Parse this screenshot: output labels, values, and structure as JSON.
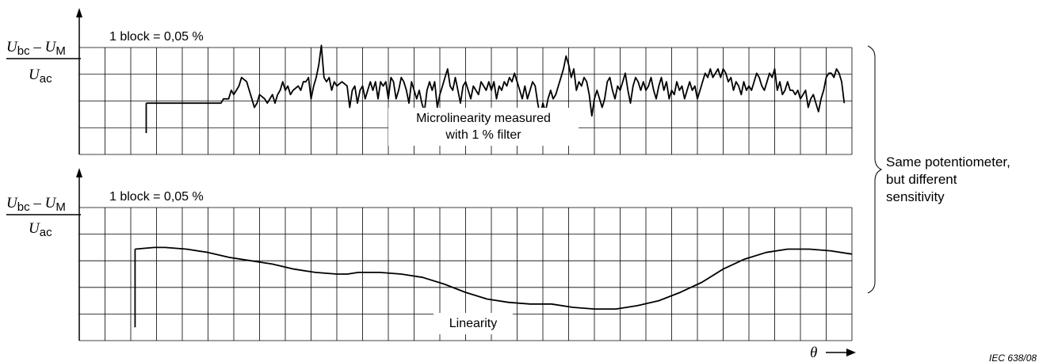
{
  "chart_data": [
    {
      "type": "line",
      "ylabel": {
        "num_a": "U",
        "num_a_sub": "bc",
        "minus": " – ",
        "num_b": "U",
        "num_b_sub": "M",
        "den": "U",
        "den_sub": "ac"
      },
      "scale_note": "1 block = 0,05 %",
      "annotation": [
        "Microlinearity measured",
        "with 1 % filter"
      ],
      "grid": true,
      "ylim": [
        -0.15,
        0.1
      ],
      "start_step": {
        "x": 2.6,
        "y_from": -0.1,
        "y_to": -0.03
      },
      "series": [
        {
          "points": [
            [
              2.6,
              -0.03
            ],
            [
              5.5,
              -0.03
            ],
            [
              5.6,
              -0.02
            ],
            [
              5.8,
              -0.02
            ],
            [
              5.9,
              0.0
            ],
            [
              6.0,
              -0.01
            ],
            [
              6.2,
              0.01
            ],
            [
              6.3,
              0.03
            ],
            [
              6.5,
              0.02
            ],
            [
              6.6,
              0.0
            ],
            [
              6.7,
              -0.02
            ],
            [
              6.8,
              -0.04
            ],
            [
              6.9,
              -0.03
            ],
            [
              7.0,
              -0.01
            ],
            [
              7.2,
              -0.02
            ],
            [
              7.3,
              -0.03
            ],
            [
              7.5,
              -0.01
            ],
            [
              7.6,
              -0.03
            ],
            [
              7.7,
              -0.01
            ],
            [
              7.8,
              0.0
            ],
            [
              7.9,
              0.02
            ],
            [
              8.0,
              0.0
            ],
            [
              8.1,
              0.01
            ],
            [
              8.2,
              -0.01
            ],
            [
              8.3,
              0.0
            ],
            [
              8.5,
              0.01
            ],
            [
              8.6,
              0.0
            ],
            [
              8.7,
              0.02
            ],
            [
              8.8,
              0.02
            ],
            [
              8.9,
              0.03
            ],
            [
              9.0,
              -0.02
            ],
            [
              9.1,
              0.01
            ],
            [
              9.2,
              0.03
            ],
            [
              9.3,
              0.06
            ],
            [
              9.4,
              0.105
            ],
            [
              9.5,
              0.03
            ],
            [
              9.6,
              0.02
            ],
            [
              9.7,
              0.03
            ],
            [
              9.8,
              0.0
            ],
            [
              9.9,
              0.02
            ],
            [
              10.0,
              0.01
            ],
            [
              10.2,
              0.02
            ],
            [
              10.4,
              0.01
            ],
            [
              10.5,
              -0.04
            ],
            [
              10.6,
              0.0
            ],
            [
              10.7,
              0.01
            ],
            [
              10.8,
              -0.03
            ],
            [
              10.9,
              0.0
            ],
            [
              11.0,
              0.01
            ],
            [
              11.1,
              -0.02
            ],
            [
              11.2,
              0.0
            ],
            [
              11.3,
              0.02
            ],
            [
              11.4,
              0.0
            ],
            [
              11.5,
              0.02
            ],
            [
              11.6,
              -0.02
            ],
            [
              11.7,
              0.02
            ],
            [
              11.8,
              0.01
            ],
            [
              11.9,
              0.02
            ],
            [
              12.0,
              -0.02
            ],
            [
              12.1,
              0.03
            ],
            [
              12.2,
              0.02
            ],
            [
              12.3,
              -0.02
            ],
            [
              12.4,
              0.0
            ],
            [
              12.5,
              0.03
            ],
            [
              12.6,
              0.02
            ],
            [
              12.7,
              0.0
            ],
            [
              12.8,
              -0.03
            ],
            [
              12.9,
              0.02
            ],
            [
              13.0,
              0.0
            ],
            [
              13.1,
              -0.02
            ],
            [
              13.2,
              0.0
            ],
            [
              13.3,
              -0.03
            ],
            [
              13.4,
              -0.05
            ],
            [
              13.5,
              0.0
            ],
            [
              13.6,
              0.02
            ],
            [
              13.7,
              0.0
            ],
            [
              13.8,
              0.02
            ],
            [
              13.9,
              -0.04
            ],
            [
              14.0,
              -0.01
            ],
            [
              14.1,
              0.01
            ],
            [
              14.2,
              0.03
            ],
            [
              14.3,
              0.05
            ],
            [
              14.4,
              0.01
            ],
            [
              14.5,
              0.0
            ],
            [
              14.6,
              0.03
            ],
            [
              14.7,
              0.0
            ],
            [
              14.8,
              -0.03
            ],
            [
              14.9,
              0.01
            ],
            [
              15.0,
              0.02
            ],
            [
              15.1,
              0.0
            ],
            [
              15.2,
              -0.02
            ],
            [
              15.3,
              0.01
            ],
            [
              15.4,
              0.0
            ],
            [
              15.5,
              -0.01
            ],
            [
              15.6,
              0.02
            ],
            [
              15.7,
              0.01
            ],
            [
              15.8,
              0.0
            ],
            [
              15.9,
              0.02
            ],
            [
              16.0,
              0.0
            ],
            [
              16.1,
              0.02
            ],
            [
              16.2,
              -0.02
            ],
            [
              16.3,
              0.01
            ],
            [
              16.4,
              0.0
            ],
            [
              16.5,
              0.02
            ],
            [
              16.6,
              0.01
            ],
            [
              16.7,
              0.03
            ],
            [
              16.8,
              0.02
            ],
            [
              16.9,
              0.04
            ],
            [
              17.0,
              0.02
            ],
            [
              17.1,
              0.0
            ],
            [
              17.2,
              -0.02
            ],
            [
              17.3,
              0.01
            ],
            [
              17.4,
              -0.02
            ],
            [
              17.5,
              0.0
            ],
            [
              17.6,
              0.02
            ],
            [
              17.7,
              0.01
            ],
            [
              17.8,
              -0.03
            ],
            [
              17.9,
              -0.06
            ],
            [
              18.0,
              -0.03
            ],
            [
              18.1,
              -0.05
            ],
            [
              18.2,
              -0.02
            ],
            [
              18.3,
              0.0
            ],
            [
              18.4,
              -0.02
            ],
            [
              18.5,
              -0.01
            ],
            [
              18.6,
              0.01
            ],
            [
              18.7,
              0.03
            ],
            [
              18.8,
              0.05
            ],
            [
              18.9,
              0.08
            ],
            [
              19.0,
              0.06
            ],
            [
              19.1,
              0.03
            ],
            [
              19.2,
              0.05
            ],
            [
              19.3,
              0.0
            ],
            [
              19.4,
              0.02
            ],
            [
              19.5,
              0.01
            ],
            [
              19.6,
              0.03
            ],
            [
              19.7,
              0.02
            ],
            [
              19.8,
              -0.01
            ],
            [
              19.9,
              -0.06
            ],
            [
              20.0,
              -0.02
            ],
            [
              20.1,
              0.0
            ],
            [
              20.2,
              -0.02
            ],
            [
              20.3,
              -0.04
            ],
            [
              20.4,
              -0.02
            ],
            [
              20.5,
              0.02
            ],
            [
              20.6,
              0.03
            ],
            [
              20.7,
              0.0
            ],
            [
              20.8,
              -0.02
            ],
            [
              20.9,
              0.01
            ],
            [
              21.0,
              0.0
            ],
            [
              21.1,
              0.02
            ],
            [
              21.2,
              0.04
            ],
            [
              21.3,
              0.0
            ],
            [
              21.4,
              -0.03
            ],
            [
              21.5,
              0.01
            ],
            [
              21.6,
              0.03
            ],
            [
              21.7,
              0.02
            ],
            [
              21.8,
              0.0
            ],
            [
              21.9,
              0.02
            ],
            [
              22.0,
              0.0
            ],
            [
              22.1,
              0.01
            ],
            [
              22.2,
              0.03
            ],
            [
              22.3,
              0.0
            ],
            [
              22.4,
              -0.02
            ],
            [
              22.5,
              0.01
            ],
            [
              22.6,
              0.03
            ],
            [
              22.7,
              0.0
            ],
            [
              22.8,
              0.02
            ],
            [
              22.9,
              -0.02
            ],
            [
              23.0,
              0.0
            ],
            [
              23.1,
              -0.01
            ],
            [
              23.2,
              0.02
            ],
            [
              23.3,
              0.0
            ],
            [
              23.4,
              0.01
            ],
            [
              23.5,
              -0.02
            ],
            [
              23.6,
              0.0
            ],
            [
              23.7,
              0.02
            ],
            [
              23.8,
              0.0
            ],
            [
              23.9,
              0.01
            ],
            [
              24.0,
              -0.02
            ],
            [
              24.1,
              0.0
            ],
            [
              24.2,
              0.02
            ],
            [
              24.3,
              0.04
            ],
            [
              24.4,
              0.03
            ],
            [
              24.5,
              0.05
            ],
            [
              24.6,
              0.03
            ],
            [
              24.7,
              0.04
            ],
            [
              24.8,
              0.05
            ],
            [
              24.9,
              0.03
            ],
            [
              25.0,
              0.05
            ],
            [
              25.1,
              0.04
            ],
            [
              25.2,
              0.02
            ],
            [
              25.3,
              0.03
            ],
            [
              25.4,
              0.0
            ],
            [
              25.5,
              0.02
            ],
            [
              25.6,
              0.01
            ],
            [
              25.7,
              -0.01
            ],
            [
              25.8,
              0.02
            ],
            [
              25.9,
              0.0
            ],
            [
              26.0,
              0.01
            ],
            [
              26.1,
              0.0
            ],
            [
              26.2,
              0.02
            ],
            [
              26.3,
              0.04
            ],
            [
              26.4,
              0.03
            ],
            [
              26.5,
              0.01
            ],
            [
              26.6,
              0.0
            ],
            [
              26.7,
              0.02
            ],
            [
              26.8,
              0.04
            ],
            [
              26.9,
              0.03
            ],
            [
              27.0,
              0.05
            ],
            [
              27.1,
              0.0
            ],
            [
              27.2,
              0.02
            ],
            [
              27.3,
              -0.01
            ],
            [
              27.4,
              0.0
            ],
            [
              27.5,
              0.02
            ],
            [
              27.6,
              0.0
            ],
            [
              27.7,
              0.0
            ],
            [
              27.8,
              -0.01
            ],
            [
              27.9,
              0.0
            ],
            [
              28.0,
              -0.02
            ],
            [
              28.1,
              -0.01
            ],
            [
              28.2,
              0.0
            ],
            [
              28.3,
              -0.04
            ],
            [
              28.4,
              -0.02
            ],
            [
              28.5,
              -0.01
            ],
            [
              28.6,
              -0.03
            ],
            [
              28.7,
              -0.05
            ],
            [
              28.8,
              -0.02
            ],
            [
              28.9,
              0.0
            ],
            [
              29.0,
              0.03
            ],
            [
              29.1,
              0.04
            ],
            [
              29.2,
              0.04
            ],
            [
              29.3,
              0.03
            ],
            [
              29.4,
              0.05
            ],
            [
              29.5,
              0.04
            ],
            [
              29.6,
              0.02
            ],
            [
              29.7,
              -0.03
            ]
          ]
        }
      ]
    },
    {
      "type": "line",
      "ylabel": {
        "num_a": "U",
        "num_a_sub": "bc",
        "minus": " – ",
        "num_b": "U",
        "num_b_sub": "M",
        "den": "U",
        "den_sub": "ac"
      },
      "scale_note": "1 block = 0,05 %",
      "annotation": [
        "Linearity"
      ],
      "grid": true,
      "ylim": [
        -0.3,
        0.1
      ],
      "start_step": {
        "x": 2.6,
        "y_from": -0.26,
        "y_to": -0.025
      },
      "series": [
        {
          "points": [
            [
              2.6,
              -0.025
            ],
            [
              3.5,
              -0.02
            ],
            [
              4.0,
              -0.02
            ],
            [
              5.0,
              -0.025
            ],
            [
              6.0,
              -0.035
            ],
            [
              7.0,
              -0.05
            ],
            [
              8.0,
              -0.06
            ],
            [
              9.0,
              -0.07
            ],
            [
              10.0,
              -0.085
            ],
            [
              11.0,
              -0.095
            ],
            [
              12.0,
              -0.1
            ],
            [
              12.5,
              -0.1
            ],
            [
              13.0,
              -0.095
            ],
            [
              14.0,
              -0.095
            ],
            [
              15.0,
              -0.1
            ],
            [
              16.0,
              -0.11
            ],
            [
              17.0,
              -0.13
            ],
            [
              18.0,
              -0.155
            ],
            [
              19.0,
              -0.175
            ],
            [
              20.0,
              -0.185
            ],
            [
              21.0,
              -0.19
            ],
            [
              22.0,
              -0.19
            ],
            [
              23.0,
              -0.2
            ],
            [
              24.0,
              -0.205
            ],
            [
              25.0,
              -0.205
            ],
            [
              26.0,
              -0.195
            ],
            [
              27.0,
              -0.18
            ],
            [
              28.0,
              -0.155
            ],
            [
              29.0,
              -0.125
            ],
            [
              30.0,
              -0.085
            ],
            [
              31.0,
              -0.055
            ],
            [
              32.0,
              -0.035
            ],
            [
              33.0,
              -0.025
            ],
            [
              34.0,
              -0.025
            ],
            [
              35.0,
              -0.03
            ],
            [
              36.0,
              -0.04
            ]
          ]
        }
      ]
    }
  ],
  "brace_note": [
    "Same potentiometer,",
    "but different",
    "sensitivity"
  ],
  "x_axis_symbol": "θ",
  "x_axis_arrow": "→",
  "figure_ref": "IEC 638/08"
}
